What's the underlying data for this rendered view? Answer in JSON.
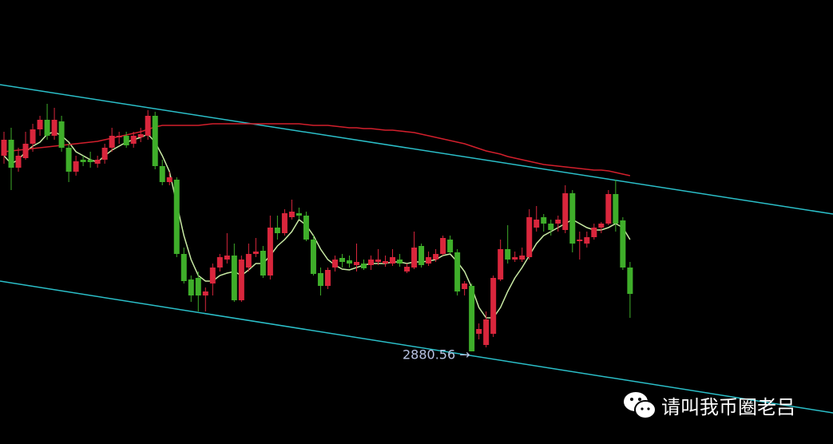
{
  "chart_data": {
    "type": "candlestick",
    "up_color": "#d9263c",
    "down_color": "#3fae2a",
    "ylim": [
      2764,
      3320
    ],
    "open": [
      3125,
      3145,
      3110,
      3122,
      3140,
      3158,
      3170,
      3150,
      3168,
      3135,
      3105,
      3120,
      3120,
      3115,
      3120,
      3135,
      3148,
      3150,
      3140,
      3148,
      3150,
      3175,
      3112,
      3092,
      3095,
      3002,
      2970,
      2972,
      2950,
      2965,
      2985,
      2995,
      3000,
      2944,
      2985,
      3002,
      3006,
      2975,
      3035,
      3028,
      3048,
      3053,
      3050,
      3020,
      2978,
      2962,
      2985,
      2997,
      2994,
      2988,
      2990,
      2988,
      2992,
      2990,
      2990,
      2995,
      2980,
      2985,
      3012,
      2990,
      2995,
      3002,
      3020,
      3004,
      2958,
      2962,
      2902,
      2888,
      2902,
      2970,
      3008,
      2995,
      2995,
      2998,
      3035,
      3048,
      3040,
      3040,
      3032,
      3078,
      3018,
      3015,
      3023,
      3035,
      3040,
      3077,
      3044,
      2985
    ],
    "high": [
      3155,
      3160,
      3135,
      3155,
      3165,
      3175,
      3190,
      3185,
      3175,
      3140,
      3125,
      3125,
      3130,
      3125,
      3140,
      3160,
      3155,
      3155,
      3155,
      3160,
      3182,
      3180,
      3120,
      3105,
      3098,
      3010,
      2975,
      2980,
      2960,
      2990,
      3002,
      3028,
      3015,
      3000,
      3015,
      3022,
      3012,
      3050,
      3050,
      3058,
      3070,
      3060,
      3055,
      3025,
      2985,
      2985,
      3000,
      3002,
      3000,
      3015,
      2995,
      3000,
      3008,
      3000,
      3008,
      3002,
      2990,
      3030,
      3015,
      3005,
      3008,
      3025,
      3025,
      3008,
      2968,
      2965,
      2915,
      2930,
      2975,
      3020,
      3038,
      3005,
      3010,
      3058,
      3062,
      3052,
      3045,
      3050,
      3088,
      3082,
      3030,
      3030,
      3040,
      3042,
      3082,
      3095,
      3048,
      2992
    ],
    "low": [
      3115,
      3082,
      3105,
      3120,
      3130,
      3150,
      3145,
      3145,
      3130,
      3092,
      3100,
      3112,
      3110,
      3110,
      3115,
      3130,
      3140,
      3135,
      3135,
      3142,
      3145,
      3108,
      3088,
      3088,
      2998,
      2965,
      2942,
      2930,
      2930,
      2950,
      2980,
      2990,
      2942,
      2942,
      2980,
      2998,
      2972,
      2970,
      3020,
      3025,
      3045,
      3045,
      3018,
      2975,
      2950,
      2958,
      2980,
      2985,
      2985,
      2980,
      2982,
      2982,
      2988,
      2986,
      2987,
      2986,
      2978,
      2983,
      2985,
      2987,
      2992,
      3000,
      3002,
      2950,
      2950,
      2880.56,
      2895,
      2885,
      2898,
      2968,
      2990,
      2992,
      2992,
      2995,
      3030,
      3030,
      3025,
      3030,
      3028,
      3004,
      2995,
      3010,
      3020,
      3028,
      3038,
      3030,
      2982,
      2922
    ],
    "close": [
      3145,
      3110,
      3125,
      3140,
      3158,
      3170,
      3150,
      3170,
      3135,
      3105,
      3118,
      3117,
      3117,
      3120,
      3135,
      3150,
      3150,
      3138,
      3150,
      3152,
      3175,
      3112,
      3092,
      3098,
      3002,
      2968,
      2950,
      2950,
      2955,
      2985,
      2998,
      3000,
      2944,
      2995,
      3002,
      3005,
      2975,
      3035,
      3028,
      3053,
      3055,
      3050,
      3020,
      2977,
      2962,
      2982,
      2995,
      2992,
      2990,
      2992,
      2984,
      2995,
      2995,
      2993,
      2998,
      2990,
      2986,
      3010,
      2988,
      2998,
      3002,
      3022,
      3004,
      2955,
      2965,
      2880,
      2908,
      2920,
      2972,
      3008,
      2995,
      2998,
      3000,
      3048,
      3045,
      3040,
      3032,
      3045,
      3078,
      3015,
      3020,
      3023,
      3035,
      3040,
      3077,
      3040,
      2985,
      2952
    ],
    "series": [
      {
        "color": "#c9eaa4",
        "values": [
          3125,
          3115,
          3120,
          3130,
          3137,
          3142,
          3152,
          3155,
          3150,
          3142,
          3130,
          3125,
          3120,
          3117,
          3125,
          3132,
          3137,
          3142,
          3145,
          3148,
          3152,
          3142,
          3125,
          3105,
          3065,
          3025,
          2995,
          2975,
          2968,
          2968,
          2975,
          2978,
          2980,
          2975,
          2982,
          2990,
          2990,
          3000,
          3012,
          3020,
          3030,
          3045,
          3038,
          3025,
          3008,
          2995,
          2988,
          2983,
          2982,
          2985,
          2988,
          2990,
          2990,
          2990,
          2992,
          2992,
          2990,
          2992,
          2992,
          2993,
          2995,
          3000,
          3002,
          2992,
          2980,
          2960,
          2935,
          2922,
          2922,
          2935,
          2955,
          2972,
          2985,
          3000,
          3015,
          3025,
          3030,
          3035,
          3040,
          3045,
          3040,
          3035,
          3032,
          3032,
          3035,
          3040,
          3035,
          3020
        ]
      },
      {
        "color": "#d21f2c",
        "values": [
          3130,
          3131,
          3132,
          3133,
          3134,
          3135,
          3136,
          3137,
          3138,
          3139,
          3140,
          3141,
          3142,
          3143,
          3145,
          3147,
          3149,
          3151,
          3153,
          3155,
          3158,
          3161,
          3163,
          3163,
          3163,
          3163,
          3163,
          3163,
          3164,
          3165,
          3165,
          3165,
          3165,
          3165,
          3165,
          3165,
          3165,
          3165,
          3165,
          3165,
          3165,
          3165,
          3164,
          3163,
          3163,
          3163,
          3162,
          3161,
          3160,
          3160,
          3159,
          3159,
          3158,
          3157,
          3157,
          3156,
          3155,
          3154,
          3152,
          3150,
          3148,
          3146,
          3144,
          3142,
          3140,
          3137,
          3134,
          3131,
          3129,
          3127,
          3124,
          3122,
          3120,
          3118,
          3116,
          3114,
          3113,
          3112,
          3111,
          3110,
          3109,
          3108,
          3107,
          3107,
          3106,
          3104,
          3102,
          3100
        ]
      }
    ],
    "annotation": {
      "value": 2880.56,
      "label": "2880.56 →"
    },
    "watermark": "请叫我币圈老吕"
  }
}
